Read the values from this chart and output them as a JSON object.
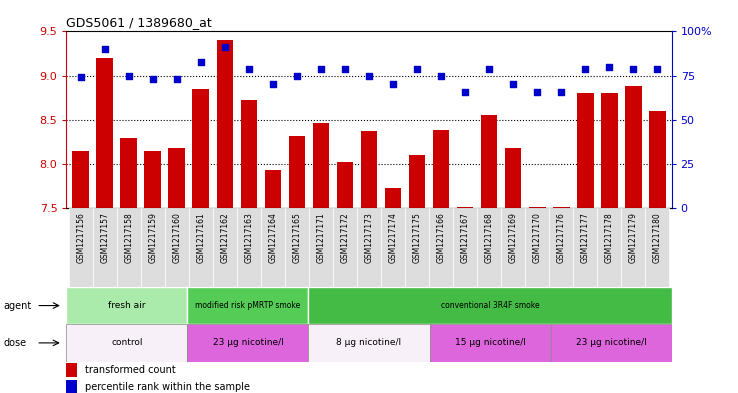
{
  "title": "GDS5061 / 1389680_at",
  "samples": [
    "GSM1217156",
    "GSM1217157",
    "GSM1217158",
    "GSM1217159",
    "GSM1217160",
    "GSM1217161",
    "GSM1217162",
    "GSM1217163",
    "GSM1217164",
    "GSM1217165",
    "GSM1217171",
    "GSM1217172",
    "GSM1217173",
    "GSM1217174",
    "GSM1217175",
    "GSM1217166",
    "GSM1217167",
    "GSM1217168",
    "GSM1217169",
    "GSM1217170",
    "GSM1217176",
    "GSM1217177",
    "GSM1217178",
    "GSM1217179",
    "GSM1217180"
  ],
  "transformed_count": [
    8.15,
    9.2,
    8.3,
    8.15,
    8.18,
    8.85,
    9.4,
    8.73,
    7.93,
    8.32,
    8.47,
    8.02,
    8.37,
    7.73,
    8.1,
    8.38,
    7.52,
    8.55,
    8.18,
    7.52,
    7.52,
    8.8,
    8.8,
    8.88,
    8.6
  ],
  "percentile_rank": [
    74,
    90,
    75,
    73,
    73,
    83,
    91,
    79,
    70,
    75,
    79,
    79,
    75,
    70,
    79,
    75,
    66,
    79,
    70,
    66,
    66,
    79,
    80,
    79,
    79
  ],
  "bar_color": "#cc0000",
  "dot_color": "#0000cc",
  "ymin": 7.5,
  "ymax": 9.5,
  "ylim_left": [
    7.5,
    9.5
  ],
  "ylim_right": [
    0,
    100
  ],
  "yticks_left": [
    7.5,
    8.0,
    8.5,
    9.0,
    9.5
  ],
  "yticks_right": [
    0,
    25,
    50,
    75,
    100
  ],
  "grid_values": [
    8.0,
    8.5,
    9.0
  ],
  "agent_labels": [
    {
      "text": "fresh air",
      "start": 0,
      "end": 5,
      "color": "#aaeaaa"
    },
    {
      "text": "modified risk pMRTP smoke",
      "start": 5,
      "end": 10,
      "color": "#55cc55"
    },
    {
      "text": "conventional 3R4F smoke",
      "start": 10,
      "end": 25,
      "color": "#44bb44"
    }
  ],
  "dose_labels": [
    {
      "text": "control",
      "start": 0,
      "end": 5,
      "color": "#f8f0f8"
    },
    {
      "text": "23 μg nicotine/l",
      "start": 5,
      "end": 10,
      "color": "#dd66dd"
    },
    {
      "text": "8 μg nicotine/l",
      "start": 10,
      "end": 15,
      "color": "#f8f0f8"
    },
    {
      "text": "15 μg nicotine/l",
      "start": 15,
      "end": 20,
      "color": "#dd66dd"
    },
    {
      "text": "23 μg nicotine/l",
      "start": 20,
      "end": 25,
      "color": "#dd66dd"
    }
  ],
  "legend_items": [
    {
      "label": "transformed count",
      "color": "#cc0000"
    },
    {
      "label": "percentile rank within the sample",
      "color": "#0000cc"
    }
  ],
  "background_color": "#ffffff",
  "tick_bg_color": "#dddddd"
}
